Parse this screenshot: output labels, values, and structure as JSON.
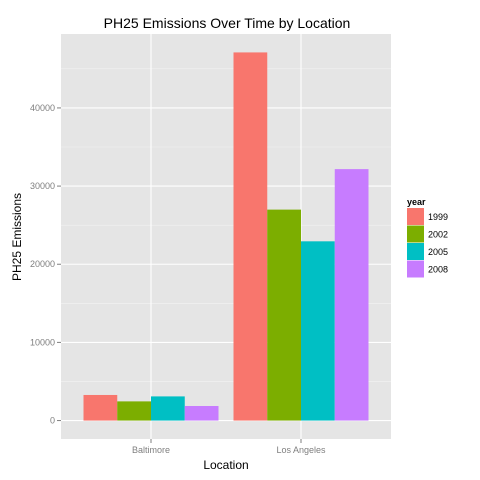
{
  "chart_data": {
    "type": "bar",
    "title": "PH25 Emissions Over Time by Location",
    "xlabel": "Location",
    "ylabel": "PH25 Emissions",
    "categories": [
      "Baltimore",
      "Los Angeles"
    ],
    "series": [
      {
        "name": "1999",
        "values": [
          3274,
          47103
        ],
        "color": "#F8766D"
      },
      {
        "name": "2002",
        "values": [
          2454,
          26989
        ],
        "color": "#7CAE00"
      },
      {
        "name": "2005",
        "values": [
          3091,
          22933
        ],
        "color": "#00BFC4"
      },
      {
        "name": "2008",
        "values": [
          1862,
          32171
        ],
        "color": "#C77CFF"
      }
    ],
    "ylim": [
      -2360,
      49460
    ],
    "yticks": [
      0,
      10000,
      20000,
      30000,
      40000
    ],
    "ytick_labels": [
      "0",
      "10000",
      "20000",
      "30000",
      "40000"
    ],
    "legend_title": "year",
    "legend_position": "right",
    "grid": true,
    "panel_background": "#E5E5E5",
    "grid_color": "#FFFFFF"
  }
}
